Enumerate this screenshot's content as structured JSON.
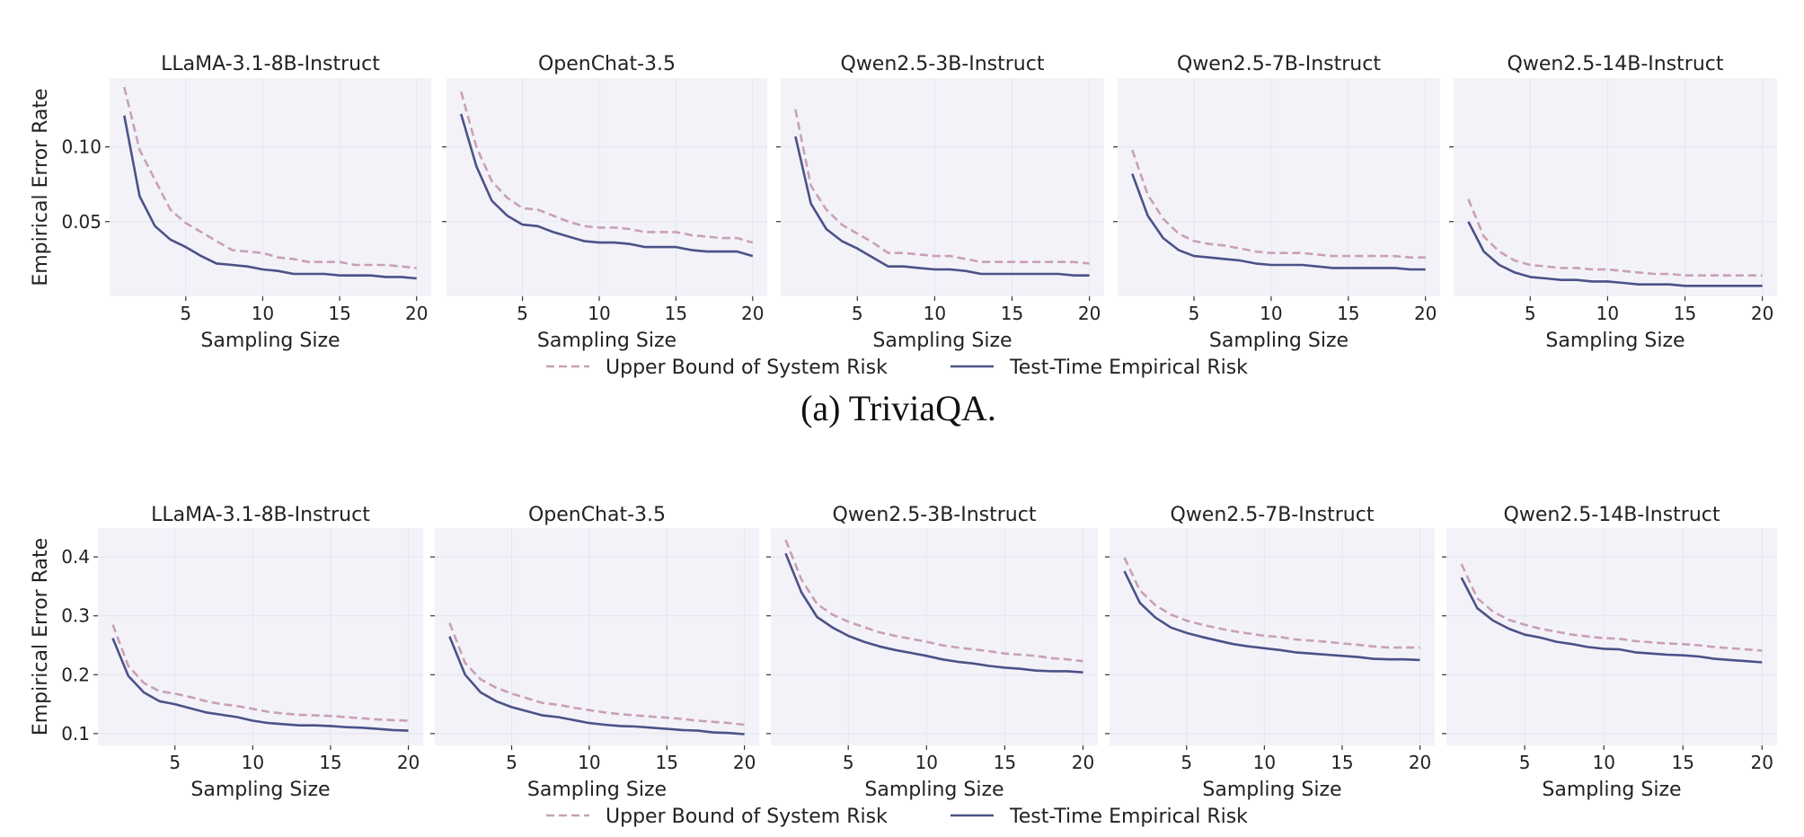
{
  "figure": {
    "caption_a": "(a) TriviaQA.",
    "background_color": "#f3f2f9",
    "grid": true
  },
  "chart_data": [
    {
      "type": "line",
      "ylabel": "Empirical Error Rate",
      "xlabel": "Sampling Size",
      "xlim": [
        0.05,
        20.95
      ],
      "ylim": [
        0.0,
        0.146
      ],
      "xticks": [
        5,
        10,
        15,
        20
      ],
      "xtick_labels": [
        "5",
        "10",
        "15",
        "20"
      ],
      "yticks": [
        0.05,
        0.1
      ],
      "ytick_labels": [
        "0.05",
        "0.10"
      ],
      "legend": {
        "placement": "bottom-center",
        "entries": [
          {
            "name": "Upper Bound of System Risk",
            "style": "dashed",
            "color": "#c9a0b5"
          },
          {
            "name": "Test-Time Empirical Risk",
            "style": "solid",
            "color": "#4b5287"
          }
        ]
      },
      "x": [
        1,
        2,
        3,
        4,
        5,
        6,
        7,
        8,
        9,
        10,
        11,
        12,
        13,
        14,
        15,
        16,
        17,
        18,
        19,
        20
      ],
      "panels": [
        {
          "title": "LLaMA-3.1-8B-Instruct",
          "series": [
            {
              "name": "Upper Bound of System Risk",
              "values": [
                0.14,
                0.098,
                0.078,
                0.058,
                0.049,
                0.043,
                0.037,
                0.031,
                0.03,
                0.029,
                0.026,
                0.025,
                0.023,
                0.023,
                0.023,
                0.021,
                0.021,
                0.021,
                0.02,
                0.019
              ]
            },
            {
              "name": "Test-Time Empirical Risk",
              "values": [
                0.121,
                0.067,
                0.047,
                0.038,
                0.033,
                0.027,
                0.022,
                0.021,
                0.02,
                0.018,
                0.017,
                0.015,
                0.015,
                0.015,
                0.014,
                0.014,
                0.014,
                0.013,
                0.013,
                0.012
              ]
            }
          ]
        },
        {
          "title": "OpenChat-3.5",
          "series": [
            {
              "name": "Upper Bound of System Risk",
              "values": [
                0.137,
                0.1,
                0.077,
                0.066,
                0.059,
                0.058,
                0.054,
                0.05,
                0.047,
                0.046,
                0.046,
                0.045,
                0.043,
                0.043,
                0.043,
                0.041,
                0.04,
                0.039,
                0.039,
                0.036
              ]
            },
            {
              "name": "Test-Time Empirical Risk",
              "values": [
                0.122,
                0.087,
                0.064,
                0.054,
                0.048,
                0.047,
                0.043,
                0.04,
                0.037,
                0.036,
                0.036,
                0.035,
                0.033,
                0.033,
                0.033,
                0.031,
                0.03,
                0.03,
                0.03,
                0.027
              ]
            }
          ]
        },
        {
          "title": "Qwen2.5-3B-Instruct",
          "series": [
            {
              "name": "Upper Bound of System Risk",
              "values": [
                0.125,
                0.074,
                0.058,
                0.048,
                0.042,
                0.036,
                0.029,
                0.029,
                0.028,
                0.027,
                0.027,
                0.025,
                0.023,
                0.023,
                0.023,
                0.023,
                0.023,
                0.023,
                0.023,
                0.022
              ]
            },
            {
              "name": "Test-Time Empirical Risk",
              "values": [
                0.107,
                0.062,
                0.045,
                0.037,
                0.032,
                0.026,
                0.02,
                0.02,
                0.019,
                0.018,
                0.018,
                0.017,
                0.015,
                0.015,
                0.015,
                0.015,
                0.015,
                0.015,
                0.014,
                0.014
              ]
            }
          ]
        },
        {
          "title": "Qwen2.5-7B-Instruct",
          "series": [
            {
              "name": "Upper Bound of System Risk",
              "values": [
                0.098,
                0.068,
                0.052,
                0.042,
                0.037,
                0.035,
                0.034,
                0.032,
                0.03,
                0.029,
                0.029,
                0.029,
                0.028,
                0.027,
                0.027,
                0.027,
                0.027,
                0.027,
                0.026,
                0.026
              ]
            },
            {
              "name": "Test-Time Empirical Risk",
              "values": [
                0.082,
                0.054,
                0.039,
                0.031,
                0.027,
                0.026,
                0.025,
                0.024,
                0.022,
                0.021,
                0.021,
                0.021,
                0.02,
                0.019,
                0.019,
                0.019,
                0.019,
                0.019,
                0.018,
                0.018
              ]
            }
          ]
        },
        {
          "title": "Qwen2.5-14B-Instruct",
          "series": [
            {
              "name": "Upper Bound of System Risk",
              "values": [
                0.065,
                0.04,
                0.03,
                0.024,
                0.021,
                0.02,
                0.019,
                0.019,
                0.018,
                0.018,
                0.017,
                0.016,
                0.015,
                0.015,
                0.014,
                0.014,
                0.014,
                0.014,
                0.014,
                0.014
              ]
            },
            {
              "name": "Test-Time Empirical Risk",
              "values": [
                0.05,
                0.03,
                0.021,
                0.016,
                0.013,
                0.012,
                0.011,
                0.011,
                0.01,
                0.01,
                0.009,
                0.008,
                0.008,
                0.008,
                0.007,
                0.007,
                0.007,
                0.007,
                0.007,
                0.007
              ]
            }
          ]
        }
      ]
    },
    {
      "type": "line",
      "ylabel": "Empirical Error Rate",
      "xlabel": "Sampling Size",
      "xlim": [
        0.05,
        20.95
      ],
      "ylim": [
        0.08,
        0.449
      ],
      "xticks": [
        5,
        10,
        15,
        20
      ],
      "xtick_labels": [
        "5",
        "10",
        "15",
        "20"
      ],
      "yticks": [
        0.1,
        0.2,
        0.3,
        0.4
      ],
      "ytick_labels": [
        "0.1",
        "0.2",
        "0.3",
        "0.4"
      ],
      "legend": {
        "placement": "bottom-center",
        "entries": [
          {
            "name": "Upper Bound of System Risk",
            "style": "dashed",
            "color": "#c9a0b5"
          },
          {
            "name": "Test-Time Empirical Risk",
            "style": "solid",
            "color": "#4b5287"
          }
        ]
      },
      "x": [
        1,
        2,
        3,
        4,
        5,
        6,
        7,
        8,
        9,
        10,
        11,
        12,
        13,
        14,
        15,
        16,
        17,
        18,
        19,
        20
      ],
      "panels": [
        {
          "title": "LLaMA-3.1-8B-Instruct",
          "series": [
            {
              "name": "Upper Bound of System Risk",
              "values": [
                0.285,
                0.215,
                0.186,
                0.172,
                0.168,
                0.162,
                0.155,
                0.15,
                0.147,
                0.142,
                0.137,
                0.134,
                0.132,
                0.131,
                0.13,
                0.128,
                0.126,
                0.124,
                0.123,
                0.122
              ]
            },
            {
              "name": "Test-Time Empirical Risk",
              "values": [
                0.262,
                0.198,
                0.17,
                0.155,
                0.15,
                0.143,
                0.136,
                0.132,
                0.128,
                0.122,
                0.118,
                0.116,
                0.114,
                0.114,
                0.113,
                0.111,
                0.11,
                0.108,
                0.106,
                0.105
              ]
            }
          ]
        },
        {
          "title": "OpenChat-3.5",
          "series": [
            {
              "name": "Upper Bound of System Risk",
              "values": [
                0.288,
                0.22,
                0.192,
                0.178,
                0.168,
                0.16,
                0.152,
                0.149,
                0.144,
                0.14,
                0.136,
                0.133,
                0.131,
                0.129,
                0.127,
                0.125,
                0.122,
                0.12,
                0.118,
                0.115
              ]
            },
            {
              "name": "Test-Time Empirical Risk",
              "values": [
                0.265,
                0.2,
                0.17,
                0.155,
                0.145,
                0.138,
                0.131,
                0.128,
                0.123,
                0.118,
                0.115,
                0.113,
                0.112,
                0.11,
                0.108,
                0.106,
                0.105,
                0.102,
                0.101,
                0.099
              ]
            }
          ]
        },
        {
          "title": "Qwen2.5-3B-Instruct",
          "series": [
            {
              "name": "Upper Bound of System Risk",
              "values": [
                0.429,
                0.362,
                0.32,
                0.302,
                0.29,
                0.281,
                0.272,
                0.266,
                0.261,
                0.256,
                0.25,
                0.246,
                0.243,
                0.24,
                0.236,
                0.234,
                0.232,
                0.228,
                0.226,
                0.223
              ]
            },
            {
              "name": "Test-Time Empirical Risk",
              "values": [
                0.406,
                0.34,
                0.298,
                0.28,
                0.266,
                0.256,
                0.248,
                0.242,
                0.237,
                0.232,
                0.226,
                0.222,
                0.219,
                0.215,
                0.212,
                0.21,
                0.207,
                0.206,
                0.206,
                0.204
              ]
            }
          ]
        },
        {
          "title": "Qwen2.5-7B-Instruct",
          "series": [
            {
              "name": "Upper Bound of System Risk",
              "values": [
                0.399,
                0.343,
                0.318,
                0.302,
                0.292,
                0.285,
                0.279,
                0.274,
                0.27,
                0.266,
                0.264,
                0.26,
                0.258,
                0.256,
                0.253,
                0.251,
                0.248,
                0.246,
                0.246,
                0.246
              ]
            },
            {
              "name": "Test-Time Empirical Risk",
              "values": [
                0.376,
                0.322,
                0.297,
                0.28,
                0.271,
                0.264,
                0.258,
                0.252,
                0.248,
                0.245,
                0.242,
                0.238,
                0.236,
                0.234,
                0.232,
                0.23,
                0.227,
                0.226,
                0.226,
                0.225
              ]
            }
          ]
        },
        {
          "title": "Qwen2.5-14B-Instruct",
          "series": [
            {
              "name": "Upper Bound of System Risk",
              "values": [
                0.388,
                0.33,
                0.307,
                0.293,
                0.285,
                0.278,
                0.273,
                0.268,
                0.265,
                0.262,
                0.261,
                0.257,
                0.255,
                0.253,
                0.252,
                0.25,
                0.247,
                0.245,
                0.243,
                0.241
              ]
            },
            {
              "name": "Test-Time Empirical Risk",
              "values": [
                0.365,
                0.313,
                0.292,
                0.278,
                0.268,
                0.263,
                0.256,
                0.252,
                0.247,
                0.244,
                0.243,
                0.238,
                0.236,
                0.234,
                0.233,
                0.231,
                0.227,
                0.225,
                0.223,
                0.221
              ]
            }
          ]
        }
      ]
    }
  ]
}
